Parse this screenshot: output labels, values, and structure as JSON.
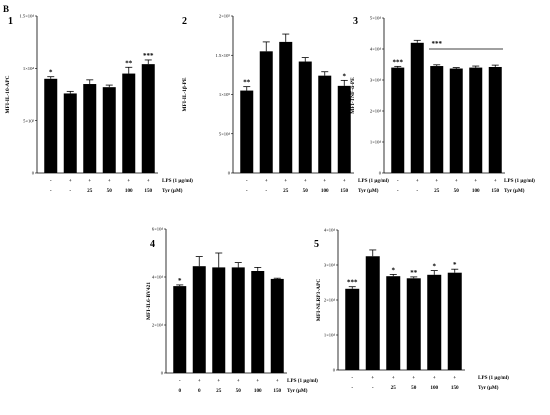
{
  "figure": {
    "label": "B"
  },
  "chart_data": [
    {
      "type": "bar",
      "panel_number": "1",
      "ylabel": "MFI-IL-10-APC",
      "ylim": [
        0,
        1.5
      ],
      "yticks": [
        "0",
        "5×10³",
        "1×10⁴",
        "1.5×10⁴"
      ],
      "row1_label": "LPS (1 μg/ml)",
      "row2_label": "Tyr (μM)",
      "row1": [
        "-",
        "+",
        "+",
        "+",
        "+",
        "+"
      ],
      "row2": [
        "-",
        "-",
        "25",
        "50",
        "100",
        "150"
      ],
      "values": [
        0.9,
        0.76,
        0.85,
        0.82,
        0.95,
        1.04
      ],
      "errors": [
        0.02,
        0.02,
        0.04,
        0.02,
        0.06,
        0.04
      ],
      "significance": [
        "*",
        "",
        "",
        "",
        "**",
        "***"
      ],
      "line_start_bar": null
    },
    {
      "type": "bar",
      "panel_number": "2",
      "ylabel": "MFI-IL-1β-PE",
      "ylim": [
        0,
        2.0
      ],
      "yticks": [
        "0",
        "5×10⁴",
        "1×10⁵",
        "1.5×10⁵",
        "2×10⁵"
      ],
      "row1_label": "LPS (1 μg/ml)",
      "row2_label": "Tyr (μM)",
      "row1": [
        "-",
        "+",
        "+",
        "+",
        "+",
        "+"
      ],
      "row2": [
        "-",
        "-",
        "25",
        "50",
        "100",
        "150"
      ],
      "values": [
        1.05,
        1.55,
        1.67,
        1.42,
        1.24,
        1.11
      ],
      "errors": [
        0.05,
        0.12,
        0.1,
        0.05,
        0.05,
        0.07
      ],
      "significance": [
        "**",
        "",
        "",
        "",
        "",
        "*"
      ],
      "line_start_bar": null
    },
    {
      "type": "bar",
      "panel_number": "3",
      "ylabel": "MFI-TNF-α-PE",
      "ylim": [
        0,
        5
      ],
      "yticks": [
        "0",
        "1×10⁴",
        "2×10⁴",
        "3×10⁴",
        "4×10⁴",
        "5×10⁴"
      ],
      "row1_label": "LPS (1 μg/ml)",
      "row2_label": "Tyr (μM)",
      "row1": [
        "-",
        "+",
        "+",
        "+",
        "+",
        "+"
      ],
      "row2": [
        "-",
        "-",
        "25",
        "50",
        "100",
        "150"
      ],
      "values": [
        3.4,
        4.2,
        3.45,
        3.37,
        3.4,
        3.42
      ],
      "errors": [
        0.04,
        0.08,
        0.04,
        0.03,
        0.05,
        0.06
      ],
      "significance": [
        "***",
        "",
        "***",
        "",
        "",
        ""
      ],
      "line_start_bar": 2
    },
    {
      "type": "bar",
      "panel_number": "4",
      "ylabel": "MFI-IL6-BV421",
      "ylim": [
        0,
        6
      ],
      "yticks": [
        "0",
        "2×10⁴",
        "4×10⁴",
        "6×10⁴"
      ],
      "row1_label": "LPS (1 μg/ml)",
      "row2_label": "Tyr (μM)",
      "row1": [
        "-",
        "+",
        "+",
        "+",
        "+",
        "+"
      ],
      "row2": [
        "0",
        "0",
        "25",
        "50",
        "100",
        "150"
      ],
      "values": [
        3.62,
        4.45,
        4.4,
        4.4,
        4.25,
        3.92
      ],
      "errors": [
        0.05,
        0.4,
        0.6,
        0.2,
        0.15,
        0.03
      ],
      "significance": [
        "*",
        "",
        "",
        "",
        "",
        ""
      ],
      "line_start_bar": null
    },
    {
      "type": "bar",
      "panel_number": "5",
      "ylabel": "MFI-NLRP3-APC",
      "ylim": [
        0,
        4
      ],
      "yticks": [
        "0",
        "1×10⁴",
        "2×10⁴",
        "3×10⁴",
        "4×10⁴"
      ],
      "row1_label": "LPS (1 μg/ml)",
      "row2_label": "Tyr (μM)",
      "row1": [
        "-",
        "+",
        "+",
        "+",
        "+",
        "+"
      ],
      "row2": [
        "-",
        "-",
        "25",
        "50",
        "100",
        "150"
      ],
      "values": [
        2.32,
        3.25,
        2.68,
        2.62,
        2.72,
        2.78
      ],
      "errors": [
        0.06,
        0.18,
        0.05,
        0.04,
        0.12,
        0.1
      ],
      "significance": [
        "***",
        "",
        "*",
        "**",
        "*",
        "*"
      ],
      "line_start_bar": null
    }
  ]
}
